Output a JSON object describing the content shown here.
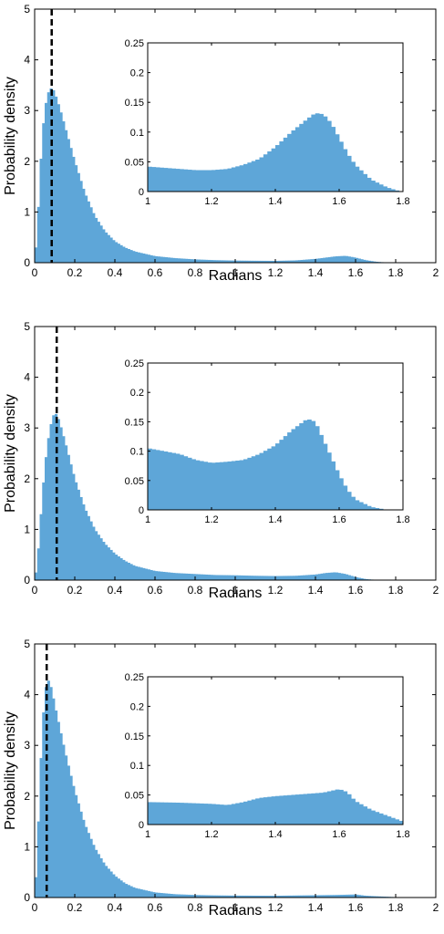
{
  "colors": {
    "bar": "#5ea6d8",
    "axis": "#000000",
    "marker": "#000000"
  },
  "chart_data": [
    {
      "type": "bar",
      "title": "",
      "xlabel": "Radians",
      "ylabel": "Probability density",
      "xlim": [
        0,
        2
      ],
      "ylim": [
        0,
        5
      ],
      "xticks": [
        "0",
        "0.2",
        "0.4",
        "0.6",
        "0.8",
        "1",
        "1.2",
        "1.4",
        "1.6",
        "1.8",
        "2"
      ],
      "yticks": [
        "0",
        "1",
        "2",
        "3",
        "4",
        "5"
      ],
      "bin_width": 0.0125,
      "reference_line_x": 0.085,
      "peak_x": 0.085,
      "peak_y": 3.45,
      "curve_points": [
        [
          0.0,
          0.0
        ],
        [
          0.0125,
          0.6
        ],
        [
          0.025,
          1.6
        ],
        [
          0.0375,
          2.5
        ],
        [
          0.05,
          3.0
        ],
        [
          0.0625,
          3.3
        ],
        [
          0.075,
          3.42
        ],
        [
          0.0875,
          3.45
        ],
        [
          0.1,
          3.35
        ],
        [
          0.125,
          3.05
        ],
        [
          0.15,
          2.7
        ],
        [
          0.2,
          2.0
        ],
        [
          0.25,
          1.38
        ],
        [
          0.3,
          0.92
        ],
        [
          0.35,
          0.62
        ],
        [
          0.4,
          0.42
        ],
        [
          0.45,
          0.3
        ],
        [
          0.5,
          0.22
        ],
        [
          0.6,
          0.13
        ],
        [
          0.7,
          0.09
        ],
        [
          0.8,
          0.065
        ],
        [
          0.9,
          0.05
        ],
        [
          1.0,
          0.042
        ],
        [
          1.1,
          0.038
        ],
        [
          1.2,
          0.036
        ],
        [
          1.3,
          0.045
        ],
        [
          1.4,
          0.075
        ],
        [
          1.45,
          0.1
        ],
        [
          1.5,
          0.125
        ],
        [
          1.55,
          0.135
        ],
        [
          1.6,
          0.1
        ],
        [
          1.65,
          0.05
        ],
        [
          1.7,
          0.02
        ],
        [
          1.75,
          0.005
        ],
        [
          1.8,
          0.0
        ],
        [
          2.0,
          0.0
        ]
      ],
      "inset": {
        "xlim": [
          1,
          1.8
        ],
        "ylim": [
          0,
          0.25
        ],
        "xticks": [
          "1",
          "1.2",
          "1.4",
          "1.6",
          "1.8"
        ],
        "yticks": [
          "0",
          "0.05",
          "0.1",
          "0.15",
          "0.2",
          "0.25"
        ],
        "bin_width": 0.0125,
        "curve_points": [
          [
            1.0,
            0.042
          ],
          [
            1.05,
            0.04
          ],
          [
            1.1,
            0.038
          ],
          [
            1.15,
            0.036
          ],
          [
            1.2,
            0.036
          ],
          [
            1.25,
            0.038
          ],
          [
            1.3,
            0.045
          ],
          [
            1.35,
            0.055
          ],
          [
            1.4,
            0.075
          ],
          [
            1.45,
            0.1
          ],
          [
            1.5,
            0.122
          ],
          [
            1.525,
            0.132
          ],
          [
            1.55,
            0.13
          ],
          [
            1.575,
            0.115
          ],
          [
            1.6,
            0.09
          ],
          [
            1.625,
            0.065
          ],
          [
            1.65,
            0.045
          ],
          [
            1.7,
            0.02
          ],
          [
            1.75,
            0.007
          ],
          [
            1.78,
            0.002
          ],
          [
            1.8,
            0.0
          ]
        ]
      }
    },
    {
      "type": "bar",
      "title": "",
      "xlabel": "Radians",
      "ylabel": "Probability density",
      "xlim": [
        0,
        2
      ],
      "ylim": [
        0,
        5
      ],
      "xticks": [
        "0",
        "0.2",
        "0.4",
        "0.6",
        "0.8",
        "1",
        "1.2",
        "1.4",
        "1.6",
        "1.8",
        "2"
      ],
      "yticks": [
        "0",
        "1",
        "2",
        "3",
        "4",
        "5"
      ],
      "bin_width": 0.0125,
      "reference_line_x": 0.11,
      "peak_x": 0.1,
      "peak_y": 3.3,
      "curve_points": [
        [
          0.0,
          0.0
        ],
        [
          0.0125,
          0.3
        ],
        [
          0.025,
          0.95
        ],
        [
          0.0375,
          1.65
        ],
        [
          0.05,
          2.2
        ],
        [
          0.0625,
          2.65
        ],
        [
          0.075,
          2.95
        ],
        [
          0.0875,
          3.2
        ],
        [
          0.1,
          3.3
        ],
        [
          0.1125,
          3.25
        ],
        [
          0.125,
          3.1
        ],
        [
          0.15,
          2.75
        ],
        [
          0.2,
          2.0
        ],
        [
          0.25,
          1.42
        ],
        [
          0.3,
          1.0
        ],
        [
          0.35,
          0.72
        ],
        [
          0.4,
          0.52
        ],
        [
          0.45,
          0.38
        ],
        [
          0.5,
          0.28
        ],
        [
          0.6,
          0.18
        ],
        [
          0.7,
          0.14
        ],
        [
          0.8,
          0.12
        ],
        [
          0.9,
          0.1
        ],
        [
          1.0,
          0.095
        ],
        [
          1.1,
          0.085
        ],
        [
          1.2,
          0.08
        ],
        [
          1.3,
          0.085
        ],
        [
          1.4,
          0.11
        ],
        [
          1.45,
          0.14
        ],
        [
          1.5,
          0.155
        ],
        [
          1.55,
          0.12
        ],
        [
          1.6,
          0.06
        ],
        [
          1.65,
          0.02
        ],
        [
          1.7,
          0.005
        ],
        [
          1.75,
          0.0
        ],
        [
          2.0,
          0.0
        ]
      ],
      "inset": {
        "xlim": [
          1,
          1.8
        ],
        "ylim": [
          0,
          0.25
        ],
        "xticks": [
          "1",
          "1.2",
          "1.4",
          "1.6",
          "1.8"
        ],
        "yticks": [
          "0",
          "0.05",
          "0.1",
          "0.15",
          "0.2",
          "0.25"
        ],
        "bin_width": 0.0125,
        "curve_points": [
          [
            1.0,
            0.105
          ],
          [
            1.05,
            0.1
          ],
          [
            1.1,
            0.095
          ],
          [
            1.15,
            0.085
          ],
          [
            1.2,
            0.08
          ],
          [
            1.25,
            0.082
          ],
          [
            1.3,
            0.085
          ],
          [
            1.35,
            0.095
          ],
          [
            1.4,
            0.11
          ],
          [
            1.45,
            0.135
          ],
          [
            1.5,
            0.155
          ],
          [
            1.525,
            0.15
          ],
          [
            1.55,
            0.12
          ],
          [
            1.575,
            0.09
          ],
          [
            1.6,
            0.06
          ],
          [
            1.625,
            0.035
          ],
          [
            1.65,
            0.018
          ],
          [
            1.7,
            0.005
          ],
          [
            1.75,
            0.0
          ],
          [
            1.8,
            0.0
          ]
        ]
      }
    },
    {
      "type": "bar",
      "title": "",
      "xlabel": "Radians",
      "ylabel": "Probability density",
      "xlim": [
        0,
        2
      ],
      "ylim": [
        0,
        5
      ],
      "xticks": [
        "0",
        "0.2",
        "0.4",
        "0.6",
        "0.8",
        "1",
        "1.2",
        "1.4",
        "1.6",
        "1.8",
        "2"
      ],
      "yticks": [
        "0",
        "1",
        "2",
        "3",
        "4",
        "5"
      ],
      "bin_width": 0.0125,
      "reference_line_x": 0.06,
      "peak_x": 0.0625,
      "peak_y": 4.3,
      "curve_points": [
        [
          0.0,
          0.0
        ],
        [
          0.0125,
          0.8
        ],
        [
          0.025,
          2.2
        ],
        [
          0.0375,
          3.3
        ],
        [
          0.05,
          4.0
        ],
        [
          0.0625,
          4.3
        ],
        [
          0.075,
          4.25
        ],
        [
          0.0875,
          4.05
        ],
        [
          0.1,
          3.8
        ],
        [
          0.125,
          3.35
        ],
        [
          0.15,
          2.9
        ],
        [
          0.2,
          2.1
        ],
        [
          0.25,
          1.45
        ],
        [
          0.3,
          0.98
        ],
        [
          0.35,
          0.65
        ],
        [
          0.4,
          0.43
        ],
        [
          0.45,
          0.28
        ],
        [
          0.5,
          0.19
        ],
        [
          0.6,
          0.1
        ],
        [
          0.7,
          0.065
        ],
        [
          0.8,
          0.05
        ],
        [
          0.9,
          0.042
        ],
        [
          1.0,
          0.038
        ],
        [
          1.2,
          0.035
        ],
        [
          1.4,
          0.045
        ],
        [
          1.5,
          0.05
        ],
        [
          1.55,
          0.055
        ],
        [
          1.6,
          0.06
        ],
        [
          1.65,
          0.035
        ],
        [
          1.7,
          0.025
        ],
        [
          1.8,
          0.008
        ],
        [
          2.0,
          0.0
        ]
      ],
      "inset": {
        "xlim": [
          1,
          1.8
        ],
        "ylim": [
          0,
          0.25
        ],
        "xticks": [
          "1",
          "1.2",
          "1.4",
          "1.6",
          "1.8"
        ],
        "yticks": [
          "0",
          "0.05",
          "0.1",
          "0.15",
          "0.2",
          "0.25"
        ],
        "bin_width": 0.0125,
        "curve_points": [
          [
            1.0,
            0.038
          ],
          [
            1.1,
            0.037
          ],
          [
            1.2,
            0.035
          ],
          [
            1.25,
            0.033
          ],
          [
            1.3,
            0.038
          ],
          [
            1.35,
            0.045
          ],
          [
            1.4,
            0.048
          ],
          [
            1.45,
            0.05
          ],
          [
            1.5,
            0.052
          ],
          [
            1.55,
            0.054
          ],
          [
            1.6,
            0.06
          ],
          [
            1.625,
            0.055
          ],
          [
            1.65,
            0.04
          ],
          [
            1.7,
            0.025
          ],
          [
            1.75,
            0.015
          ],
          [
            1.8,
            0.005
          ]
        ]
      }
    }
  ]
}
